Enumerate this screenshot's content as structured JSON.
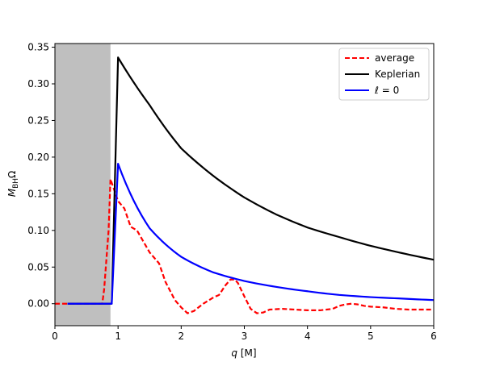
{
  "chart_data": {
    "type": "line",
    "title": "",
    "xlabel": "q [M]",
    "ylabel": "M_BH Ω",
    "xlim": [
      0,
      6
    ],
    "ylim": [
      -0.03,
      0.355
    ],
    "x_ticks": [
      0,
      1,
      2,
      3,
      4,
      5,
      6
    ],
    "x_tick_labels": [
      "0",
      "1",
      "2",
      "3",
      "4",
      "5",
      "6"
    ],
    "y_ticks": [
      0.0,
      0.05,
      0.1,
      0.15,
      0.2,
      0.25,
      0.3,
      0.35
    ],
    "y_tick_labels": [
      "0.00",
      "0.05",
      "0.10",
      "0.15",
      "0.20",
      "0.25",
      "0.30",
      "0.35"
    ],
    "grid": false,
    "legend_position": "top-right",
    "shaded_region": {
      "x": [
        0,
        0.88
      ],
      "color": "#bfbfbf"
    },
    "series": [
      {
        "name": "average",
        "color": "#ff0000",
        "style": "dashed",
        "x": [
          0,
          0.2,
          0.4,
          0.6,
          0.75,
          0.78,
          0.85,
          0.88,
          1.0,
          1.1,
          1.2,
          1.3,
          1.4,
          1.5,
          1.65,
          1.75,
          1.9,
          2.0,
          2.1,
          2.2,
          2.35,
          2.5,
          2.6,
          2.7,
          2.78,
          2.85,
          2.9,
          3.0,
          3.1,
          3.2,
          3.3,
          3.4,
          3.6,
          3.8,
          4.0,
          4.2,
          4.4,
          4.5,
          4.6,
          4.7,
          4.8,
          4.9,
          5.0,
          5.2,
          5.4,
          5.6,
          5.8,
          6.0
        ],
        "y": [
          0.0,
          0.0,
          0.0,
          0.0,
          0.0,
          0.02,
          0.1,
          0.17,
          0.14,
          0.13,
          0.105,
          0.1,
          0.085,
          0.07,
          0.055,
          0.03,
          0.005,
          -0.005,
          -0.013,
          -0.01,
          0.0,
          0.008,
          0.012,
          0.025,
          0.033,
          0.033,
          0.028,
          0.01,
          -0.007,
          -0.013,
          -0.012,
          -0.008,
          -0.007,
          -0.008,
          -0.009,
          -0.009,
          -0.007,
          -0.003,
          -0.001,
          0.0,
          -0.001,
          -0.003,
          -0.004,
          -0.005,
          -0.007,
          -0.008,
          -0.008,
          -0.008
        ]
      },
      {
        "name": "Keplerian",
        "color": "#000000",
        "style": "solid",
        "x": [
          0.2,
          0.9,
          1.0,
          1.5,
          2.0,
          2.5,
          3.0,
          3.5,
          4.0,
          4.5,
          5.0,
          5.5,
          6.0
        ],
        "y": [
          0.0,
          0.0,
          0.336,
          0.271,
          0.212,
          0.175,
          0.145,
          0.122,
          0.104,
          0.091,
          0.079,
          0.069,
          0.06
        ],
        "curve": "kepler"
      },
      {
        "name": "ℓ = 0",
        "color": "#0000ff",
        "style": "solid",
        "x": [
          0.2,
          0.9,
          1.0,
          1.5,
          2.0,
          2.5,
          3.0,
          3.5,
          4.0,
          4.5,
          5.0,
          5.5,
          6.0
        ],
        "y": [
          0.0,
          0.0,
          0.191,
          0.103,
          0.064,
          0.043,
          0.031,
          0.023,
          0.017,
          0.012,
          0.009,
          0.007,
          0.005
        ],
        "curve": "l0"
      }
    ]
  }
}
